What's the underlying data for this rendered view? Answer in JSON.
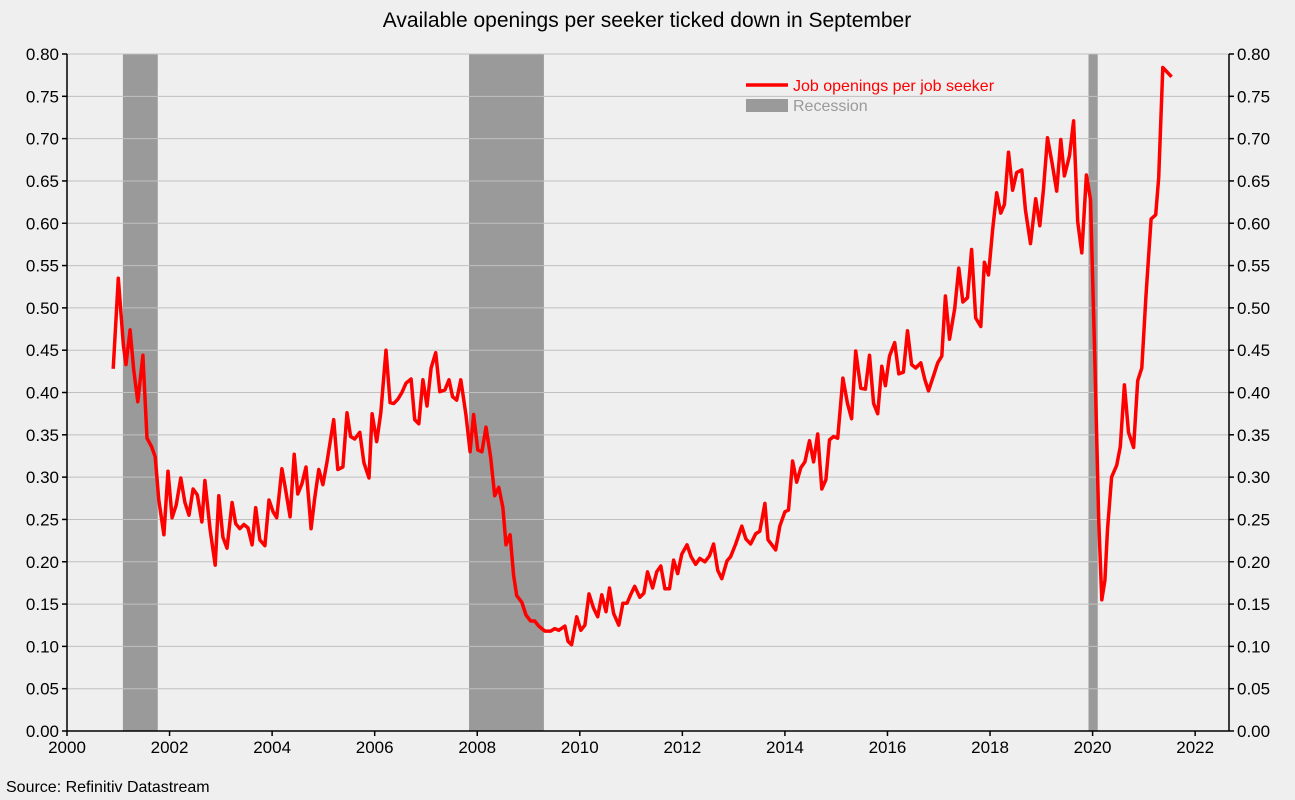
{
  "chart_data": {
    "type": "line",
    "title": "Available openings per seeker ticked down in September",
    "source": "Source: Refinitiv Datastream",
    "xlabel": "",
    "ylabel": "",
    "xlim": [
      2000,
      2022.66
    ],
    "ylim": [
      0,
      0.8
    ],
    "x_ticks": [
      2000,
      2002,
      2004,
      2006,
      2008,
      2010,
      2012,
      2014,
      2016,
      2018,
      2020,
      2022
    ],
    "x_tick_labels": [
      "2000",
      "2002",
      "2004",
      "2006",
      "2008",
      "2010",
      "2012",
      "2014",
      "2016",
      "2018",
      "2020",
      "2022"
    ],
    "y_ticks": [
      0,
      0.05,
      0.1,
      0.15,
      0.2,
      0.25,
      0.3,
      0.35,
      0.4,
      0.45,
      0.5,
      0.55,
      0.6,
      0.65,
      0.7,
      0.75,
      0.8
    ],
    "y_tick_labels": [
      "0.00",
      "0.05",
      "0.10",
      "0.15",
      "0.20",
      "0.25",
      "0.30",
      "0.35",
      "0.40",
      "0.45",
      "0.50",
      "0.55",
      "0.60",
      "0.65",
      "0.70",
      "0.75",
      "0.80"
    ],
    "grid": true,
    "legend_position": "top-right",
    "colors": {
      "series": "#ff0000",
      "recession": "#9a9a9a",
      "background": "#efefef",
      "grid": "#c0c0c0"
    },
    "legend": [
      {
        "label": "Job openings per job seeker",
        "type": "line"
      },
      {
        "label": "Recession",
        "type": "band"
      }
    ],
    "recessions": [
      [
        2001.09,
        2001.77
      ],
      [
        2007.84,
        2009.3
      ],
      [
        2019.92,
        2020.1
      ]
    ],
    "series": [
      {
        "name": "Job openings per job seeker",
        "x": [
          2000.9,
          2001.0,
          2001.1,
          2001.15,
          2001.23,
          2001.3,
          2001.38,
          2001.48,
          2001.56,
          2001.65,
          2001.72,
          2001.79,
          2001.89,
          2001.97,
          2002.05,
          2002.13,
          2002.22,
          2002.3,
          2002.38,
          2002.46,
          2002.54,
          2002.63,
          2002.69,
          2002.79,
          2002.89,
          2002.96,
          2003.04,
          2003.12,
          2003.22,
          2003.29,
          2003.37,
          2003.45,
          2003.53,
          2003.61,
          2003.68,
          2003.76,
          2003.86,
          2003.94,
          2004.02,
          2004.09,
          2004.19,
          2004.25,
          2004.35,
          2004.43,
          2004.5,
          2004.58,
          2004.66,
          2004.76,
          2004.83,
          2004.91,
          2004.99,
          2005.07,
          2005.2,
          2005.28,
          2005.38,
          2005.46,
          2005.53,
          2005.61,
          2005.71,
          2005.79,
          2005.89,
          2005.95,
          2006.04,
          2006.12,
          2006.22,
          2006.3,
          2006.37,
          2006.45,
          2006.53,
          2006.61,
          2006.71,
          2006.78,
          2006.86,
          2006.94,
          2007.02,
          2007.1,
          2007.19,
          2007.27,
          2007.37,
          2007.45,
          2007.52,
          2007.6,
          2007.68,
          2007.78,
          2007.86,
          2007.93,
          2008.01,
          2008.09,
          2008.17,
          2008.26,
          2008.34,
          2008.42,
          2008.5,
          2008.56,
          2008.64,
          2008.71,
          2008.77,
          2008.87,
          2008.95,
          2009.04,
          2009.12,
          2009.2,
          2009.32,
          2009.43,
          2009.51,
          2009.59,
          2009.71,
          2009.77,
          2009.84,
          2009.94,
          2010.02,
          2010.1,
          2010.18,
          2010.27,
          2010.35,
          2010.43,
          2010.51,
          2010.58,
          2010.66,
          2010.76,
          2010.84,
          2010.92,
          2010.99,
          2011.07,
          2011.17,
          2011.25,
          2011.32,
          2011.42,
          2011.5,
          2011.58,
          2011.66,
          2011.75,
          2011.83,
          2011.91,
          2011.99,
          2012.09,
          2012.17,
          2012.26,
          2012.34,
          2012.44,
          2012.53,
          2012.61,
          2012.69,
          2012.77,
          2012.87,
          2012.94,
          2013.04,
          2013.16,
          2013.24,
          2013.33,
          2013.43,
          2013.51,
          2013.61,
          2013.67,
          2013.82,
          2013.9,
          2014.0,
          2014.07,
          2014.15,
          2014.23,
          2014.31,
          2014.39,
          2014.48,
          2014.56,
          2014.64,
          2014.72,
          2014.8,
          2014.87,
          2014.95,
          2015.03,
          2015.13,
          2015.22,
          2015.3,
          2015.38,
          2015.48,
          2015.57,
          2015.65,
          2015.73,
          2015.81,
          2015.89,
          2015.96,
          2016.04,
          2016.14,
          2016.22,
          2016.31,
          2016.39,
          2016.47,
          2016.55,
          2016.65,
          2016.73,
          2016.8,
          2016.9,
          2016.98,
          2017.06,
          2017.13,
          2017.21,
          2017.31,
          2017.39,
          2017.47,
          2017.56,
          2017.64,
          2017.72,
          2017.82,
          2017.89,
          2017.97,
          2018.05,
          2018.13,
          2018.21,
          2018.28,
          2018.36,
          2018.44,
          2018.52,
          2018.62,
          2018.69,
          2018.79,
          2018.89,
          2018.97,
          2019.04,
          2019.12,
          2019.21,
          2019.3,
          2019.38,
          2019.45,
          2019.55,
          2019.63,
          2019.71,
          2019.79,
          2019.88,
          2019.96,
          2020.04,
          2020.12,
          2020.18,
          2020.24,
          2020.29,
          2020.37,
          2020.47,
          2020.54,
          2020.62,
          2020.7,
          2020.8,
          2020.88,
          2020.96,
          2021.04,
          2021.14,
          2021.23,
          2021.29,
          2021.37,
          2021.54
        ],
        "y": [
          0.428,
          0.535,
          0.456,
          0.433,
          0.474,
          0.427,
          0.389,
          0.444,
          0.346,
          0.336,
          0.324,
          0.273,
          0.232,
          0.307,
          0.252,
          0.267,
          0.299,
          0.27,
          0.255,
          0.286,
          0.279,
          0.247,
          0.296,
          0.238,
          0.196,
          0.278,
          0.229,
          0.216,
          0.27,
          0.245,
          0.239,
          0.244,
          0.24,
          0.22,
          0.264,
          0.226,
          0.219,
          0.273,
          0.259,
          0.252,
          0.31,
          0.29,
          0.253,
          0.327,
          0.28,
          0.292,
          0.312,
          0.239,
          0.275,
          0.309,
          0.291,
          0.318,
          0.368,
          0.309,
          0.312,
          0.376,
          0.348,
          0.345,
          0.353,
          0.317,
          0.299,
          0.375,
          0.342,
          0.376,
          0.45,
          0.388,
          0.387,
          0.392,
          0.4,
          0.411,
          0.416,
          0.368,
          0.363,
          0.415,
          0.384,
          0.429,
          0.447,
          0.401,
          0.403,
          0.415,
          0.395,
          0.391,
          0.415,
          0.373,
          0.33,
          0.374,
          0.332,
          0.33,
          0.359,
          0.324,
          0.278,
          0.288,
          0.264,
          0.22,
          0.232,
          0.184,
          0.16,
          0.152,
          0.137,
          0.13,
          0.13,
          0.124,
          0.118,
          0.118,
          0.121,
          0.119,
          0.124,
          0.106,
          0.102,
          0.135,
          0.119,
          0.125,
          0.162,
          0.145,
          0.135,
          0.161,
          0.141,
          0.169,
          0.139,
          0.125,
          0.151,
          0.151,
          0.161,
          0.171,
          0.158,
          0.163,
          0.188,
          0.169,
          0.188,
          0.195,
          0.168,
          0.168,
          0.202,
          0.186,
          0.209,
          0.22,
          0.206,
          0.197,
          0.204,
          0.2,
          0.207,
          0.221,
          0.19,
          0.18,
          0.201,
          0.206,
          0.221,
          0.242,
          0.227,
          0.221,
          0.233,
          0.236,
          0.269,
          0.226,
          0.214,
          0.242,
          0.259,
          0.261,
          0.319,
          0.294,
          0.311,
          0.318,
          0.343,
          0.318,
          0.351,
          0.286,
          0.297,
          0.344,
          0.348,
          0.346,
          0.417,
          0.387,
          0.369,
          0.449,
          0.405,
          0.404,
          0.444,
          0.387,
          0.375,
          0.431,
          0.408,
          0.443,
          0.459,
          0.422,
          0.424,
          0.473,
          0.433,
          0.429,
          0.435,
          0.415,
          0.402,
          0.42,
          0.435,
          0.443,
          0.514,
          0.463,
          0.499,
          0.547,
          0.507,
          0.512,
          0.569,
          0.488,
          0.478,
          0.554,
          0.539,
          0.592,
          0.636,
          0.612,
          0.622,
          0.684,
          0.639,
          0.66,
          0.663,
          0.616,
          0.576,
          0.629,
          0.597,
          0.639,
          0.701,
          0.671,
          0.638,
          0.699,
          0.656,
          0.68,
          0.721,
          0.602,
          0.565,
          0.657,
          0.628,
          0.45,
          0.25,
          0.155,
          0.178,
          0.238,
          0.3,
          0.314,
          0.336,
          0.409,
          0.353,
          0.335,
          0.414,
          0.429,
          0.513,
          0.605,
          0.61,
          0.654,
          0.784,
          0.773
        ]
      }
    ]
  }
}
